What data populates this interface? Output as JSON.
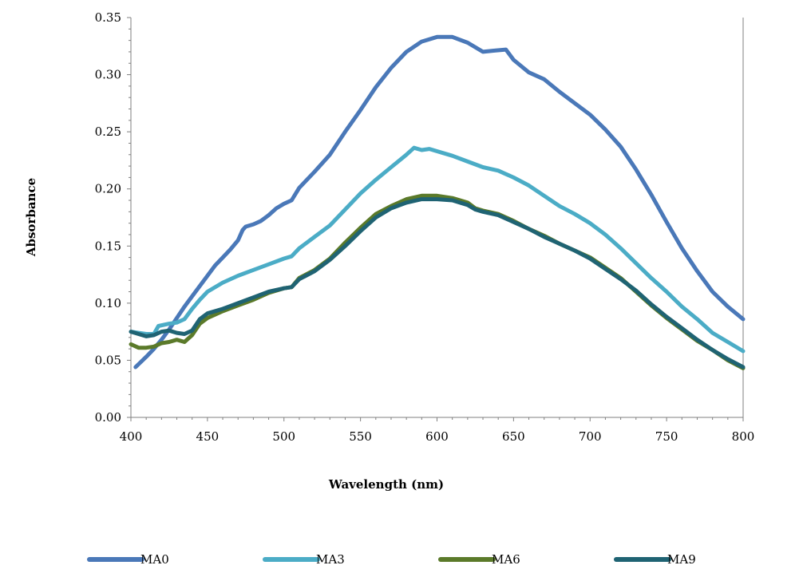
{
  "chart_data": {
    "type": "line",
    "title": "",
    "xlabel": "Wavelength (nm)",
    "ylabel": "Absorbance",
    "xlim": [
      400,
      800
    ],
    "ylim": [
      0,
      0.35
    ],
    "xticks": [
      400,
      450,
      500,
      550,
      600,
      650,
      700,
      750,
      800
    ],
    "xtick_labels": [
      "400",
      "450",
      "500",
      "550",
      "600",
      "650",
      "700",
      "750",
      "800"
    ],
    "yticks": [
      0,
      0.05,
      0.1,
      0.15,
      0.2,
      0.25,
      0.3,
      0.35
    ],
    "ytick_labels": [
      "0.00",
      "0.05",
      "0.10",
      "0.15",
      "0.20",
      "0.25",
      "0.30",
      "0.35"
    ],
    "grid": false,
    "legend_position": "bottom",
    "series": [
      {
        "name": "MA0",
        "color": "#4a78b8",
        "points": [
          [
            403,
            0.044
          ],
          [
            410,
            0.053
          ],
          [
            415,
            0.06
          ],
          [
            420,
            0.068
          ],
          [
            425,
            0.077
          ],
          [
            430,
            0.087
          ],
          [
            435,
            0.097
          ],
          [
            440,
            0.106
          ],
          [
            445,
            0.115
          ],
          [
            450,
            0.124
          ],
          [
            455,
            0.133
          ],
          [
            460,
            0.14
          ],
          [
            465,
            0.147
          ],
          [
            470,
            0.155
          ],
          [
            473,
            0.164
          ],
          [
            475,
            0.167
          ],
          [
            480,
            0.169
          ],
          [
            485,
            0.172
          ],
          [
            490,
            0.177
          ],
          [
            495,
            0.183
          ],
          [
            500,
            0.187
          ],
          [
            505,
            0.19
          ],
          [
            510,
            0.201
          ],
          [
            520,
            0.215
          ],
          [
            530,
            0.23
          ],
          [
            540,
            0.25
          ],
          [
            550,
            0.269
          ],
          [
            560,
            0.289
          ],
          [
            570,
            0.306
          ],
          [
            580,
            0.32
          ],
          [
            590,
            0.329
          ],
          [
            600,
            0.333
          ],
          [
            610,
            0.333
          ],
          [
            620,
            0.328
          ],
          [
            630,
            0.32
          ],
          [
            637,
            0.321
          ],
          [
            645,
            0.322
          ],
          [
            650,
            0.313
          ],
          [
            660,
            0.302
          ],
          [
            670,
            0.296
          ],
          [
            680,
            0.285
          ],
          [
            690,
            0.275
          ],
          [
            700,
            0.265
          ],
          [
            710,
            0.252
          ],
          [
            720,
            0.237
          ],
          [
            730,
            0.217
          ],
          [
            740,
            0.195
          ],
          [
            750,
            0.171
          ],
          [
            760,
            0.148
          ],
          [
            770,
            0.128
          ],
          [
            780,
            0.11
          ],
          [
            790,
            0.097
          ],
          [
            800,
            0.086
          ]
        ]
      },
      {
        "name": "MA3",
        "color": "#4bacc6",
        "points": [
          [
            400,
            0.075
          ],
          [
            405,
            0.074
          ],
          [
            410,
            0.073
          ],
          [
            415,
            0.073
          ],
          [
            418,
            0.08
          ],
          [
            425,
            0.082
          ],
          [
            430,
            0.083
          ],
          [
            435,
            0.086
          ],
          [
            440,
            0.095
          ],
          [
            445,
            0.103
          ],
          [
            450,
            0.11
          ],
          [
            460,
            0.118
          ],
          [
            470,
            0.124
          ],
          [
            480,
            0.129
          ],
          [
            490,
            0.134
          ],
          [
            500,
            0.139
          ],
          [
            505,
            0.141
          ],
          [
            510,
            0.148
          ],
          [
            520,
            0.158
          ],
          [
            530,
            0.168
          ],
          [
            540,
            0.182
          ],
          [
            550,
            0.196
          ],
          [
            560,
            0.208
          ],
          [
            570,
            0.219
          ],
          [
            580,
            0.23
          ],
          [
            585,
            0.236
          ],
          [
            590,
            0.234
          ],
          [
            595,
            0.235
          ],
          [
            600,
            0.233
          ],
          [
            610,
            0.229
          ],
          [
            620,
            0.224
          ],
          [
            630,
            0.219
          ],
          [
            640,
            0.216
          ],
          [
            650,
            0.21
          ],
          [
            660,
            0.203
          ],
          [
            670,
            0.194
          ],
          [
            680,
            0.185
          ],
          [
            690,
            0.178
          ],
          [
            700,
            0.17
          ],
          [
            710,
            0.16
          ],
          [
            720,
            0.148
          ],
          [
            730,
            0.135
          ],
          [
            740,
            0.122
          ],
          [
            750,
            0.11
          ],
          [
            760,
            0.097
          ],
          [
            770,
            0.086
          ],
          [
            780,
            0.074
          ],
          [
            790,
            0.066
          ],
          [
            800,
            0.058
          ]
        ]
      },
      {
        "name": "MA6",
        "color": "#5b7a2a",
        "points": [
          [
            400,
            0.064
          ],
          [
            405,
            0.061
          ],
          [
            410,
            0.061
          ],
          [
            415,
            0.062
          ],
          [
            420,
            0.065
          ],
          [
            425,
            0.066
          ],
          [
            430,
            0.068
          ],
          [
            435,
            0.066
          ],
          [
            440,
            0.072
          ],
          [
            445,
            0.082
          ],
          [
            450,
            0.087
          ],
          [
            460,
            0.093
          ],
          [
            470,
            0.098
          ],
          [
            480,
            0.103
          ],
          [
            490,
            0.109
          ],
          [
            500,
            0.113
          ],
          [
            505,
            0.114
          ],
          [
            510,
            0.122
          ],
          [
            520,
            0.129
          ],
          [
            530,
            0.139
          ],
          [
            540,
            0.153
          ],
          [
            550,
            0.166
          ],
          [
            560,
            0.178
          ],
          [
            570,
            0.185
          ],
          [
            580,
            0.191
          ],
          [
            590,
            0.194
          ],
          [
            600,
            0.194
          ],
          [
            610,
            0.192
          ],
          [
            620,
            0.188
          ],
          [
            625,
            0.183
          ],
          [
            630,
            0.181
          ],
          [
            640,
            0.178
          ],
          [
            650,
            0.172
          ],
          [
            660,
            0.165
          ],
          [
            670,
            0.159
          ],
          [
            680,
            0.152
          ],
          [
            690,
            0.146
          ],
          [
            700,
            0.14
          ],
          [
            710,
            0.131
          ],
          [
            720,
            0.122
          ],
          [
            730,
            0.11
          ],
          [
            740,
            0.098
          ],
          [
            750,
            0.087
          ],
          [
            760,
            0.077
          ],
          [
            770,
            0.067
          ],
          [
            780,
            0.059
          ],
          [
            790,
            0.05
          ],
          [
            800,
            0.043
          ]
        ]
      },
      {
        "name": "MA9",
        "color": "#1f6373",
        "points": [
          [
            400,
            0.075
          ],
          [
            405,
            0.073
          ],
          [
            410,
            0.071
          ],
          [
            415,
            0.072
          ],
          [
            420,
            0.075
          ],
          [
            425,
            0.076
          ],
          [
            430,
            0.074
          ],
          [
            435,
            0.073
          ],
          [
            440,
            0.076
          ],
          [
            445,
            0.086
          ],
          [
            450,
            0.091
          ],
          [
            460,
            0.095
          ],
          [
            470,
            0.1
          ],
          [
            480,
            0.105
          ],
          [
            490,
            0.11
          ],
          [
            500,
            0.113
          ],
          [
            505,
            0.114
          ],
          [
            510,
            0.121
          ],
          [
            520,
            0.128
          ],
          [
            530,
            0.138
          ],
          [
            540,
            0.15
          ],
          [
            550,
            0.163
          ],
          [
            560,
            0.175
          ],
          [
            570,
            0.183
          ],
          [
            580,
            0.188
          ],
          [
            590,
            0.191
          ],
          [
            600,
            0.191
          ],
          [
            610,
            0.19
          ],
          [
            620,
            0.186
          ],
          [
            625,
            0.182
          ],
          [
            630,
            0.18
          ],
          [
            640,
            0.177
          ],
          [
            650,
            0.171
          ],
          [
            660,
            0.165
          ],
          [
            670,
            0.158
          ],
          [
            680,
            0.152
          ],
          [
            690,
            0.146
          ],
          [
            700,
            0.139
          ],
          [
            710,
            0.13
          ],
          [
            720,
            0.121
          ],
          [
            730,
            0.111
          ],
          [
            740,
            0.099
          ],
          [
            750,
            0.088
          ],
          [
            760,
            0.078
          ],
          [
            770,
            0.068
          ],
          [
            780,
            0.059
          ],
          [
            790,
            0.051
          ],
          [
            800,
            0.044
          ]
        ]
      }
    ]
  }
}
